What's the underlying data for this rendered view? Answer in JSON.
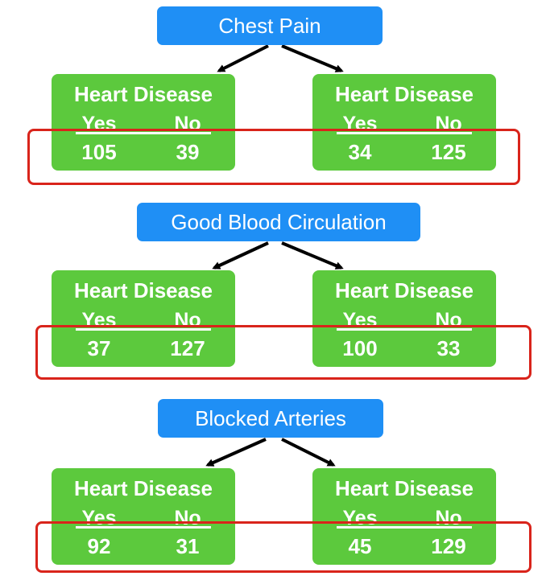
{
  "trees": [
    {
      "root": "Chest Pain",
      "leaves": [
        {
          "title": "Heart Disease",
          "yes_label": "Yes",
          "no_label": "No",
          "yes": "105",
          "no": "39"
        },
        {
          "title": "Heart Disease",
          "yes_label": "Yes",
          "no_label": "No",
          "yes": "34",
          "no": "125"
        }
      ]
    },
    {
      "root": "Good Blood Circulation",
      "leaves": [
        {
          "title": "Heart Disease",
          "yes_label": "Yes",
          "no_label": "No",
          "yes": "37",
          "no": "127"
        },
        {
          "title": "Heart Disease",
          "yes_label": "Yes",
          "no_label": "No",
          "yes": "100",
          "no": "33"
        }
      ]
    },
    {
      "root": "Blocked Arteries",
      "leaves": [
        {
          "title": "Heart Disease",
          "yes_label": "Yes",
          "no_label": "No",
          "yes": "92",
          "no": "31"
        },
        {
          "title": "Heart Disease",
          "yes_label": "Yes",
          "no_label": "No",
          "yes": "45",
          "no": "129"
        }
      ]
    }
  ],
  "colors": {
    "root_fill": "#1f8ff5",
    "leaf_fill": "#5cc93d",
    "highlight_stroke": "#d9241b",
    "arrow": "#000000"
  }
}
